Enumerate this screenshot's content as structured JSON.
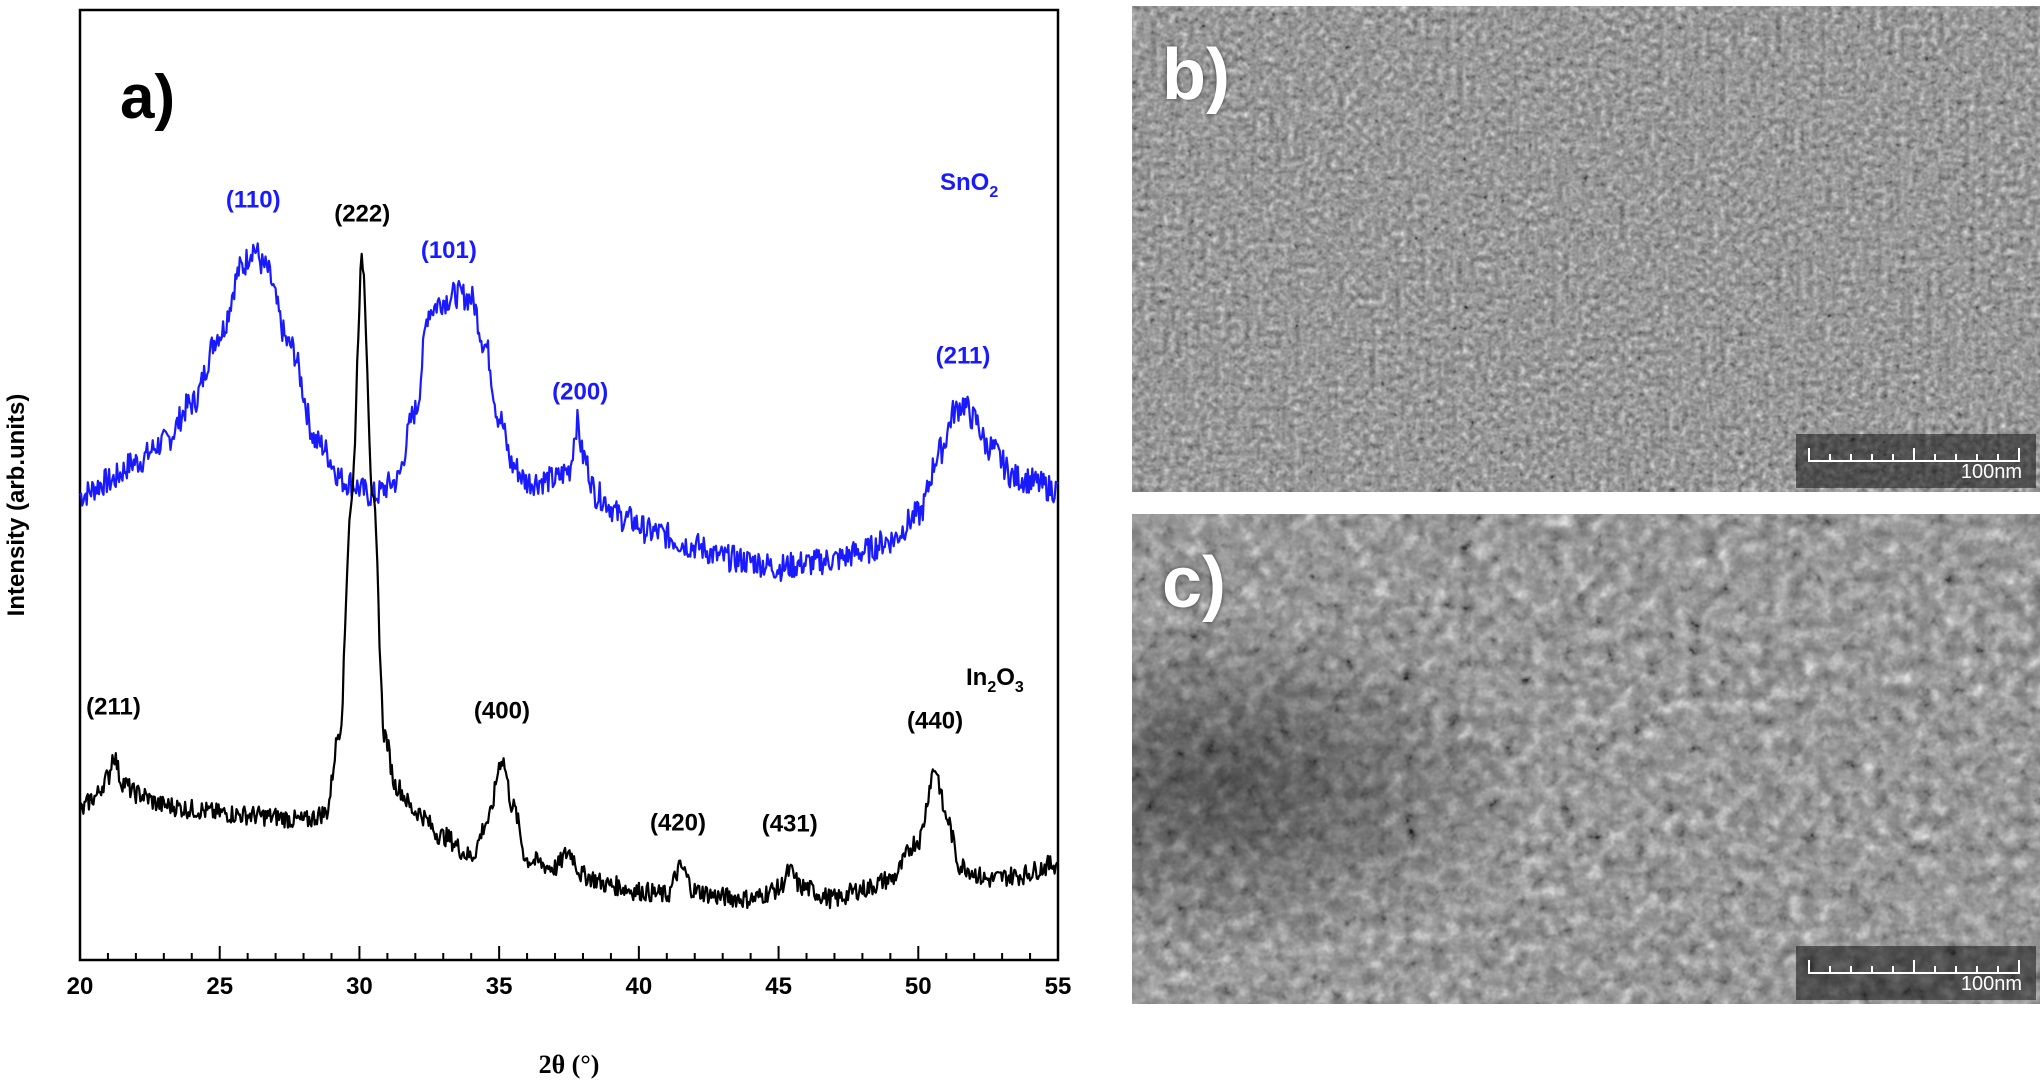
{
  "panels": {
    "a": "a)",
    "b": "b)",
    "c": "c)"
  },
  "colors": {
    "sno2": "#1a1aff",
    "in2o3": "#000000",
    "frame": "#000000"
  },
  "chart_data": {
    "type": "line",
    "xlabel": "2θ (°)",
    "ylabel": "Intensity (arb.units)",
    "xlim": [
      20,
      55
    ],
    "xticks": [
      20,
      25,
      30,
      35,
      40,
      45,
      50,
      55
    ],
    "y_axis": "arbitrary units, no tick labels",
    "grid": false,
    "series": [
      {
        "name": "SnO2",
        "name_main": "SnO",
        "name_sub": "2",
        "color": "#1a1aff",
        "points": [
          [
            20.0,
            205
          ],
          [
            21.0,
            212
          ],
          [
            22.0,
            222
          ],
          [
            23.0,
            232
          ],
          [
            24.0,
            252
          ],
          [
            25.0,
            288
          ],
          [
            25.8,
            322
          ],
          [
            26.2,
            332
          ],
          [
            26.6,
            322
          ],
          [
            27.5,
            282
          ],
          [
            28.5,
            232
          ],
          [
            29.5,
            212
          ],
          [
            30.5,
            205
          ],
          [
            31.3,
            212
          ],
          [
            32.0,
            248
          ],
          [
            32.5,
            300
          ],
          [
            33.0,
            305
          ],
          [
            33.5,
            308
          ],
          [
            34.0,
            306
          ],
          [
            34.5,
            282
          ],
          [
            35.0,
            245
          ],
          [
            35.5,
            220
          ],
          [
            36.0,
            212
          ],
          [
            37.0,
            213
          ],
          [
            37.5,
            218
          ],
          [
            37.8,
            242
          ],
          [
            38.0,
            225
          ],
          [
            38.5,
            205
          ],
          [
            39.5,
            193
          ],
          [
            40.5,
            186
          ],
          [
            42.0,
            179
          ],
          [
            43.0,
            173
          ],
          [
            44.0,
            171
          ],
          [
            45.0,
            168
          ],
          [
            46.0,
            170
          ],
          [
            47.0,
            172
          ],
          [
            48.0,
            176
          ],
          [
            49.0,
            182
          ],
          [
            50.0,
            195
          ],
          [
            50.8,
            228
          ],
          [
            51.3,
            248
          ],
          [
            51.6,
            252
          ],
          [
            52.0,
            244
          ],
          [
            52.5,
            230
          ],
          [
            53.5,
            214
          ],
          [
            55.0,
            208
          ]
        ],
        "peaks": [
          {
            "label": "(110)",
            "x": 26.2
          },
          {
            "label": "(101)",
            "x": 33.2
          },
          {
            "label": "(200)",
            "x": 37.9
          },
          {
            "label": "(211)",
            "x": 51.6
          }
        ]
      },
      {
        "name": "In2O3",
        "name_main": "In",
        "name_sub": "2",
        "name_main2": "O",
        "name_sub2": "3",
        "color": "#000000",
        "points": [
          [
            20.0,
            43
          ],
          [
            20.5,
            50
          ],
          [
            21.0,
            60
          ],
          [
            21.2,
            72
          ],
          [
            21.5,
            58
          ],
          [
            22.0,
            52
          ],
          [
            23.0,
            46
          ],
          [
            24.0,
            44
          ],
          [
            25.0,
            42
          ],
          [
            26.0,
            41
          ],
          [
            27.0,
            40
          ],
          [
            28.0,
            38
          ],
          [
            28.8,
            42
          ],
          [
            29.3,
            85
          ],
          [
            29.7,
            200
          ],
          [
            30.1,
            325
          ],
          [
            30.5,
            200
          ],
          [
            30.9,
            82
          ],
          [
            31.3,
            56
          ],
          [
            32.0,
            43
          ],
          [
            33.0,
            30
          ],
          [
            34.0,
            20
          ],
          [
            34.6,
            38
          ],
          [
            35.1,
            70
          ],
          [
            35.5,
            45
          ],
          [
            36.0,
            18
          ],
          [
            37.0,
            14
          ],
          [
            37.5,
            22
          ],
          [
            38.0,
            10
          ],
          [
            39.0,
            5
          ],
          [
            40.0,
            2
          ],
          [
            41.0,
            0
          ],
          [
            41.5,
            14
          ],
          [
            42.0,
            2
          ],
          [
            43.0,
            -1
          ],
          [
            44.0,
            -2
          ],
          [
            45.0,
            3
          ],
          [
            45.4,
            12
          ],
          [
            45.8,
            4
          ],
          [
            47.0,
            -2
          ],
          [
            48.0,
            3
          ],
          [
            49.0,
            8
          ],
          [
            50.0,
            28
          ],
          [
            50.6,
            65
          ],
          [
            51.0,
            40
          ],
          [
            51.5,
            15
          ],
          [
            52.5,
            8
          ],
          [
            53.5,
            10
          ],
          [
            55.0,
            16
          ]
        ],
        "peaks": [
          {
            "label": "(211)",
            "x": 21.2
          },
          {
            "label": "(222)",
            "x": 30.1
          },
          {
            "label": "(400)",
            "x": 35.1
          },
          {
            "label": "(420)",
            "x": 41.4
          },
          {
            "label": "(431)",
            "x": 45.4
          },
          {
            "label": "(440)",
            "x": 50.6
          }
        ]
      }
    ]
  },
  "sem_images": [
    {
      "panel": "b)",
      "scale_label": "100nm"
    },
    {
      "panel": "c)",
      "scale_label": "100nm"
    }
  ]
}
